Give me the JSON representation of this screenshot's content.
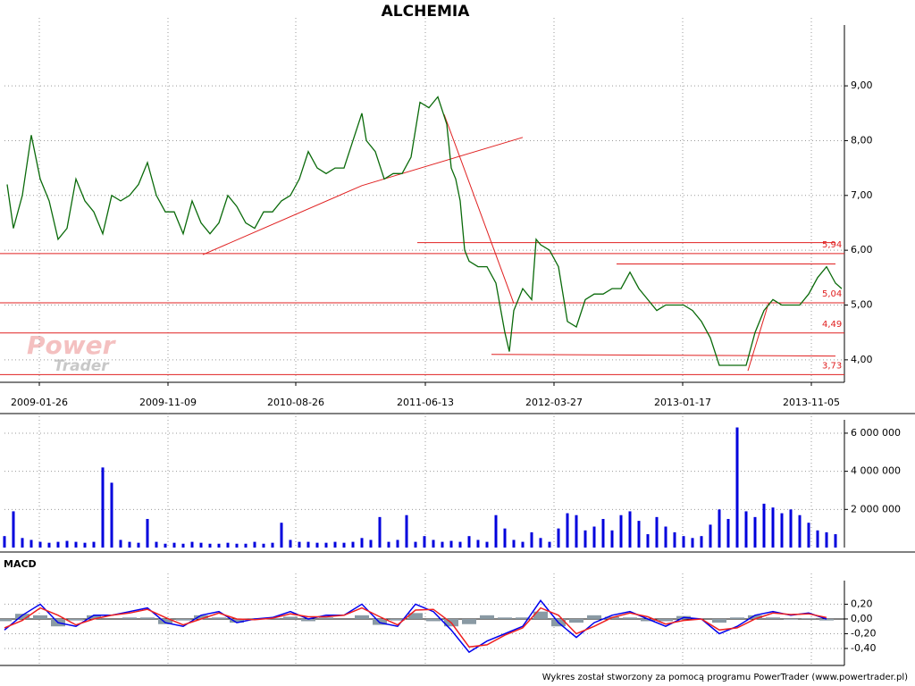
{
  "title": "ALCHEMIA",
  "footer": "Wykres został stworzony za pomocą programu PowerTrader (www.powertrader.pl)",
  "watermark": [
    "Power",
    "Trader"
  ],
  "chart_data": [
    {
      "type": "line",
      "grid": true,
      "xlim": [
        0,
        940
      ],
      "ylim": [
        3.59,
        10.11
      ],
      "xticks": [
        {
          "value": 39,
          "label": "2009-01-26"
        },
        {
          "value": 183,
          "label": "2009-11-09"
        },
        {
          "value": 326,
          "label": "2010-08-26"
        },
        {
          "value": 471,
          "label": "2011-06-13"
        },
        {
          "value": 615,
          "label": "2012-03-27"
        },
        {
          "value": 759,
          "label": "2013-01-17"
        },
        {
          "value": 903,
          "label": "2013-11-05"
        }
      ],
      "yticks": [
        {
          "value": 4,
          "label": "4,00"
        },
        {
          "value": 5,
          "label": "5,00"
        },
        {
          "value": 6,
          "label": "6,00"
        },
        {
          "value": 7,
          "label": "7,00"
        },
        {
          "value": 8,
          "label": "8,00"
        },
        {
          "value": 9,
          "label": "9,00"
        }
      ],
      "series": [
        {
          "name": "ALCHEMIA",
          "color": "#0a6a0a",
          "x": [
            3,
            10,
            20,
            30,
            40,
            50,
            60,
            70,
            80,
            90,
            100,
            110,
            120,
            130,
            140,
            150,
            160,
            170,
            180,
            190,
            200,
            210,
            220,
            230,
            240,
            250,
            260,
            270,
            280,
            290,
            300,
            310,
            320,
            330,
            340,
            350,
            360,
            370,
            380,
            390,
            400,
            405,
            415,
            425,
            435,
            445,
            455,
            465,
            475,
            485,
            495,
            500,
            505,
            510,
            515,
            520,
            530,
            540,
            550,
            560,
            565,
            570,
            580,
            590,
            595,
            600,
            610,
            620,
            630,
            640,
            650,
            660,
            670,
            680,
            690,
            700,
            710,
            720,
            730,
            740,
            750,
            760,
            770,
            780,
            790,
            800,
            810,
            820,
            830,
            840,
            850,
            860,
            870,
            880,
            890,
            900,
            910,
            920,
            930,
            937
          ],
          "values": [
            7.2,
            6.4,
            7.0,
            8.1,
            7.3,
            6.9,
            6.2,
            6.4,
            7.3,
            6.9,
            6.7,
            6.3,
            7.0,
            6.9,
            7.0,
            7.2,
            7.6,
            7.0,
            6.7,
            6.7,
            6.3,
            6.9,
            6.5,
            6.3,
            6.5,
            7.0,
            6.8,
            6.5,
            6.4,
            6.7,
            6.7,
            6.9,
            7.0,
            7.3,
            7.8,
            7.5,
            7.4,
            7.5,
            7.5,
            8.0,
            8.5,
            8.0,
            7.8,
            7.3,
            7.4,
            7.4,
            7.7,
            8.7,
            8.6,
            8.8,
            8.3,
            7.5,
            7.3,
            6.9,
            6.0,
            5.8,
            5.7,
            5.7,
            5.4,
            4.5,
            4.15,
            4.9,
            5.3,
            5.1,
            6.2,
            6.1,
            6.0,
            5.7,
            4.7,
            4.6,
            5.1,
            5.2,
            5.2,
            5.3,
            5.3,
            5.6,
            5.3,
            5.1,
            4.9,
            5.0,
            5.0,
            5.0,
            4.9,
            4.7,
            4.4,
            3.9,
            3.9,
            3.9,
            3.9,
            4.5,
            4.9,
            5.1,
            5.0,
            5.0,
            5.0,
            5.2,
            5.5,
            5.7,
            5.4,
            5.3
          ]
        }
      ],
      "levels": [
        {
          "value": 5.94,
          "label": "5,94"
        },
        {
          "value": 5.04,
          "label": "5,04"
        },
        {
          "value": 4.49,
          "label": "4,49"
        },
        {
          "value": 3.73,
          "label": "3,73"
        }
      ],
      "level_color": "#e02020",
      "lines": [
        {
          "x": [
            222,
            400,
            580
          ],
          "y": [
            5.92,
            7.18,
            8.06
          ]
        },
        {
          "x": [
            492,
            570
          ],
          "y": [
            8.48,
            5.03
          ]
        },
        {
          "x": [
            832,
            855
          ],
          "y": [
            3.8,
            5.03
          ]
        },
        {
          "x": [
            462,
            930
          ],
          "y": [
            6.14,
            6.14
          ]
        },
        {
          "x": [
            685,
            930
          ],
          "y": [
            5.75,
            5.75
          ]
        },
        {
          "x": [
            545,
            930
          ],
          "y": [
            4.1,
            4.07
          ]
        }
      ]
    },
    {
      "type": "bar",
      "grid": true,
      "color": "#0000dd",
      "xlim": [
        0,
        940
      ],
      "ylim": [
        0,
        6700000
      ],
      "yticks": [
        {
          "value": 2000000,
          "label": "2 000 000"
        },
        {
          "value": 4000000,
          "label": "4 000 000"
        },
        {
          "value": 6000000,
          "label": "6 000 000"
        }
      ],
      "x": [
        0,
        10,
        20,
        30,
        40,
        50,
        60,
        70,
        80,
        90,
        100,
        110,
        120,
        130,
        140,
        150,
        160,
        170,
        180,
        190,
        200,
        210,
        220,
        230,
        240,
        250,
        260,
        270,
        280,
        290,
        300,
        310,
        320,
        330,
        340,
        350,
        360,
        370,
        380,
        390,
        400,
        410,
        420,
        430,
        440,
        450,
        460,
        470,
        480,
        490,
        500,
        510,
        520,
        530,
        540,
        550,
        560,
        570,
        580,
        590,
        600,
        610,
        620,
        630,
        640,
        650,
        660,
        670,
        680,
        690,
        700,
        710,
        720,
        730,
        740,
        750,
        760,
        770,
        780,
        790,
        800,
        810,
        820,
        830,
        840,
        850,
        860,
        870,
        880,
        890,
        900,
        910,
        920,
        930
      ],
      "values": [
        600000,
        1900000,
        500000,
        400000,
        300000,
        250000,
        300000,
        350000,
        300000,
        250000,
        300000,
        4200000,
        3400000,
        400000,
        300000,
        250000,
        1500000,
        300000,
        200000,
        250000,
        200000,
        300000,
        250000,
        200000,
        200000,
        250000,
        200000,
        200000,
        300000,
        200000,
        250000,
        1300000,
        400000,
        300000,
        300000,
        250000,
        250000,
        300000,
        250000,
        300000,
        500000,
        400000,
        1600000,
        300000,
        400000,
        1700000,
        300000,
        600000,
        400000,
        300000,
        350000,
        300000,
        600000,
        400000,
        300000,
        1700000,
        1000000,
        400000,
        300000,
        800000,
        500000,
        300000,
        1000000,
        1800000,
        1700000,
        900000,
        1100000,
        1500000,
        900000,
        1700000,
        1900000,
        1400000,
        700000,
        1600000,
        1100000,
        800000,
        600000,
        500000,
        600000,
        1200000,
        2000000,
        1500000,
        6300000,
        1900000,
        1600000,
        2300000,
        2100000,
        1800000,
        2000000,
        1700000,
        1300000,
        900000,
        800000,
        700000
      ]
    },
    {
      "type": "line",
      "title": "MACD",
      "grid": true,
      "zero_line": true,
      "xlim": [
        0,
        940
      ],
      "ylim": [
        -0.63,
        0.52
      ],
      "yticks": [
        {
          "value": -0.4,
          "label": "-0,40"
        },
        {
          "value": -0.2,
          "label": "-0,20"
        },
        {
          "value": 0,
          "label": "0,00"
        },
        {
          "value": 0.2,
          "label": "0,20"
        }
      ],
      "x": [
        0,
        20,
        40,
        60,
        80,
        100,
        120,
        140,
        160,
        180,
        200,
        220,
        240,
        260,
        280,
        300,
        320,
        340,
        360,
        380,
        400,
        420,
        440,
        460,
        480,
        500,
        520,
        540,
        560,
        580,
        600,
        620,
        640,
        660,
        680,
        700,
        720,
        740,
        760,
        780,
        800,
        820,
        840,
        860,
        880,
        900,
        920
      ],
      "series": [
        {
          "name": "histogram",
          "style": "bar",
          "color": "#8a9aa4",
          "values": [
            -0.03,
            0.07,
            0.05,
            -0.1,
            -0.02,
            0.05,
            0,
            0.02,
            0.02,
            -0.07,
            -0.02,
            0.05,
            0.02,
            -0.05,
            0.01,
            0.01,
            0.03,
            -0.03,
            0.02,
            0,
            0.05,
            -0.08,
            -0.02,
            0.08,
            -0.03,
            -0.1,
            -0.07,
            0.05,
            0.02,
            0.02,
            0.1,
            -0.1,
            -0.05,
            0.05,
            0.03,
            0.02,
            -0.03,
            -0.03,
            0.04,
            0,
            -0.05,
            0.02,
            0.05,
            0.02,
            -0.01,
            0.01,
            -0.02
          ]
        },
        {
          "name": "macd",
          "style": "line",
          "color": "#0000ee",
          "values": [
            -0.15,
            0.05,
            0.2,
            -0.05,
            -0.1,
            0.05,
            0.05,
            0.1,
            0.15,
            -0.05,
            -0.1,
            0.05,
            0.1,
            -0.05,
            0.0,
            0.02,
            0.1,
            0.0,
            0.05,
            0.05,
            0.2,
            -0.05,
            -0.1,
            0.2,
            0.1,
            -0.15,
            -0.45,
            -0.3,
            -0.2,
            -0.1,
            0.25,
            -0.05,
            -0.25,
            -0.05,
            0.05,
            0.1,
            0.0,
            -0.1,
            0.02,
            0.0,
            -0.2,
            -0.1,
            0.05,
            0.1,
            0.05,
            0.08,
            0.0
          ]
        },
        {
          "name": "signal",
          "style": "line",
          "color": "#ee2020",
          "values": [
            -0.12,
            -0.02,
            0.15,
            0.05,
            -0.08,
            0.0,
            0.05,
            0.08,
            0.13,
            0.02,
            -0.08,
            0.0,
            0.08,
            0.0,
            -0.01,
            0.01,
            0.07,
            0.03,
            0.03,
            0.05,
            0.15,
            0.03,
            -0.08,
            0.12,
            0.13,
            -0.05,
            -0.38,
            -0.35,
            -0.22,
            -0.12,
            0.15,
            0.05,
            -0.2,
            -0.1,
            0.02,
            0.08,
            0.03,
            -0.07,
            -0.02,
            0.0,
            -0.15,
            -0.12,
            0.0,
            0.08,
            0.06,
            0.07,
            0.02
          ]
        }
      ]
    }
  ]
}
